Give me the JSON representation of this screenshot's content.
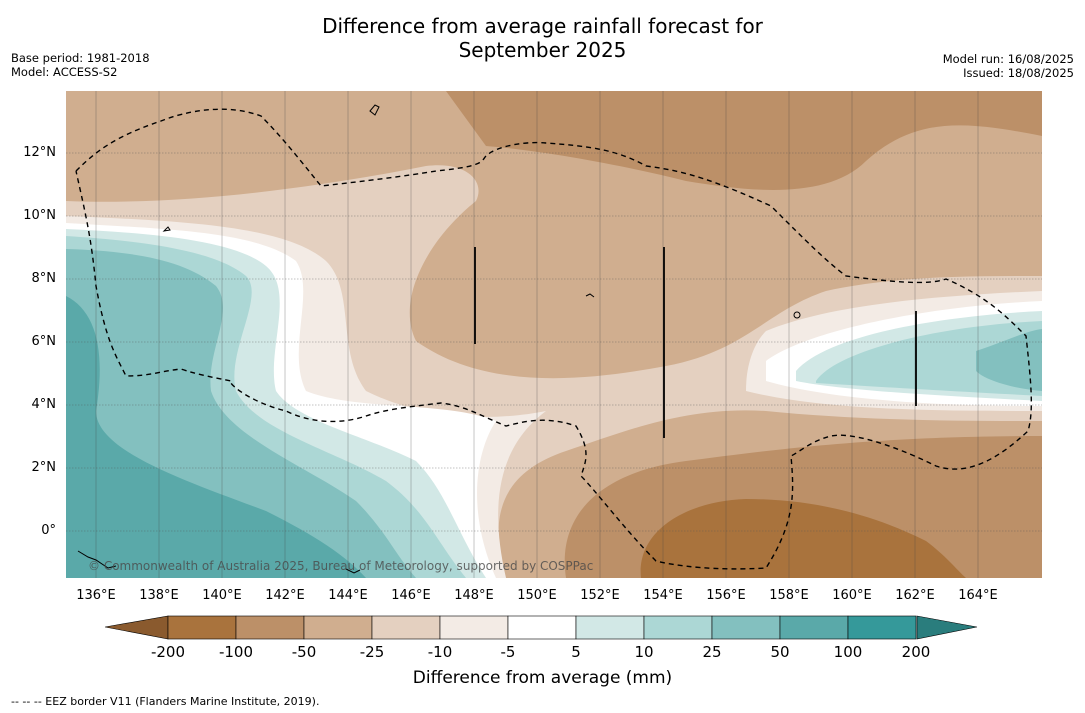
{
  "title_line1": "Difference from average rainfall forecast for",
  "title_line2": "September 2025",
  "base_period": "Base period: 1981-2018",
  "model": "Model: ACCESS-S2",
  "model_run": "Model run: 16/08/2025",
  "issued": "Issued: 18/08/2025",
  "lat_labels": [
    "12°N",
    "10°N",
    "8°N",
    "6°N",
    "4°N",
    "2°N",
    "0°"
  ],
  "lon_labels": [
    "136°E",
    "138°E",
    "140°E",
    "142°E",
    "144°E",
    "146°E",
    "148°E",
    "150°E",
    "152°E",
    "154°E",
    "156°E",
    "158°E",
    "160°E",
    "162°E",
    "164°E"
  ],
  "copyright": "© Commonwealth of Australia 2025, Bureau of Meteorology, supported by COSPPac",
  "legend": {
    "title": "Difference from average (mm)",
    "ticks": [
      "-200",
      "-100",
      "-50",
      "-25",
      "-10",
      "-5",
      "5",
      "10",
      "25",
      "50",
      "100",
      "200"
    ],
    "colors": [
      "#a9733d",
      "#bc9068",
      "#d0ae8f",
      "#e4d0c0",
      "#f3ebe5",
      "#ffffff",
      "#d2e8e6",
      "#acd7d5",
      "#83c0bf",
      "#5aa9a9",
      "#35999a"
    ],
    "under_color": "#8a5a2e",
    "over_color": "#2a7d7d"
  },
  "footnote": "--  --  -- EEZ border V11 (Flanders Marine Institute, 2019)."
}
